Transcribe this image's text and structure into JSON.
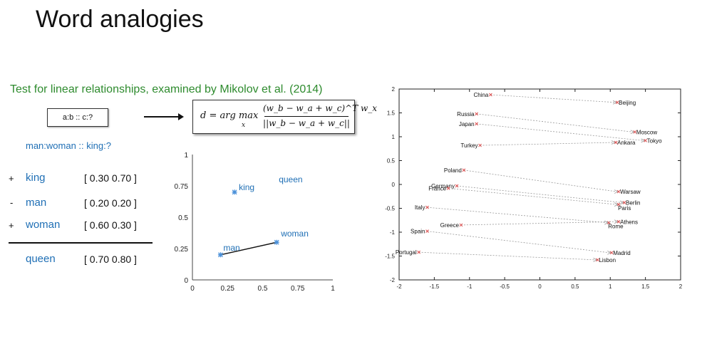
{
  "slide": {
    "title": "Word analogies",
    "subtitle": "Test for linear relationships, examined by Mikolov et al. (2014)",
    "analogy_template": "a:b :: c:?",
    "formula": {
      "lhs": "d = arg max",
      "sub": "x",
      "numerator": "(w_b − w_a + w_c)^T w_x",
      "denominator": "||w_b − w_a + w_c||"
    },
    "question": "man:woman :: king:?",
    "rows": [
      {
        "sign": "+",
        "word": "king",
        "vector": "[ 0.30 0.70 ]"
      },
      {
        "sign": "-",
        "word": "man",
        "vector": "[ 0.20 0.20 ]"
      },
      {
        "sign": "+",
        "word": "woman",
        "vector": "[ 0.60 0.30 ]"
      }
    ],
    "result": {
      "word": "queen",
      "vector": "[ 0.70 0.80 ]"
    }
  },
  "chart_data": [
    {
      "type": "scatter",
      "xlim": [
        0,
        1
      ],
      "ylim": [
        0,
        1
      ],
      "x_ticks": [
        "0",
        "0.25",
        "0.5",
        "0.75",
        "1"
      ],
      "y_ticks": [
        "0",
        "0.25",
        "0.5",
        "0.75",
        "1"
      ],
      "points": [
        {
          "label": "king",
          "x": 0.3,
          "y": 0.7,
          "marked": true
        },
        {
          "label": "man",
          "x": 0.2,
          "y": 0.2,
          "marked": true
        },
        {
          "label": "woman",
          "x": 0.6,
          "y": 0.3,
          "marked": true
        },
        {
          "label": "queen",
          "x": 0.7,
          "y": 0.8,
          "marked": false
        }
      ],
      "segments": [
        {
          "from": "man",
          "to": "woman"
        }
      ],
      "marker_color": "#4a90d9",
      "label_color": "#1f6fb5"
    },
    {
      "type": "scatter",
      "xlim": [
        -2,
        2
      ],
      "ylim": [
        -2,
        2
      ],
      "x_ticks": [
        "-2",
        "-1.5",
        "-1",
        "-0.5",
        "0",
        "0.5",
        "1",
        "1.5",
        "2"
      ],
      "y_ticks": [
        "-2",
        "-1.5",
        "-1",
        "-0.5",
        "0",
        "0.5",
        "1",
        "1.5",
        "2"
      ],
      "grid": false,
      "marker_color": "#e05050",
      "pairs": [
        {
          "country": "China",
          "cx": -0.7,
          "cy": 1.88,
          "capital": "Beijing",
          "px": 1.1,
          "py": 1.72
        },
        {
          "country": "Russia",
          "cx": -0.9,
          "cy": 1.48,
          "capital": "Moscow",
          "px": 1.35,
          "py": 1.1
        },
        {
          "country": "Japan",
          "cx": -0.9,
          "cy": 1.27,
          "capital": "Tokyo",
          "px": 1.5,
          "py": 0.92
        },
        {
          "country": "Turkey",
          "cx": -0.85,
          "cy": 0.82,
          "capital": "Ankara",
          "px": 1.08,
          "py": 0.88
        },
        {
          "country": "Poland",
          "cx": -1.08,
          "cy": 0.3,
          "capital": "Warsaw",
          "px": 1.12,
          "py": -0.15
        },
        {
          "country": "Germany",
          "cx": -1.18,
          "cy": -0.03,
          "capital": "Berlin",
          "px": 1.2,
          "py": -0.38
        },
        {
          "country": "France",
          "cx": -1.3,
          "cy": -0.08,
          "capital": "Paris",
          "px": 1.12,
          "py": -0.42
        },
        {
          "country": "Italy",
          "cx": -1.6,
          "cy": -0.48,
          "capital": "Rome",
          "px": 0.98,
          "py": -0.8
        },
        {
          "country": "Greece",
          "cx": -1.12,
          "cy": -0.85,
          "capital": "Athens",
          "px": 1.12,
          "py": -0.78
        },
        {
          "country": "Spain",
          "cx": -1.6,
          "cy": -0.98,
          "capital": "Madrid",
          "px": 1.02,
          "py": -1.43
        },
        {
          "country": "Portugal",
          "cx": -1.72,
          "cy": -1.42,
          "capital": "Lisbon",
          "px": 0.82,
          "py": -1.58
        }
      ]
    }
  ]
}
